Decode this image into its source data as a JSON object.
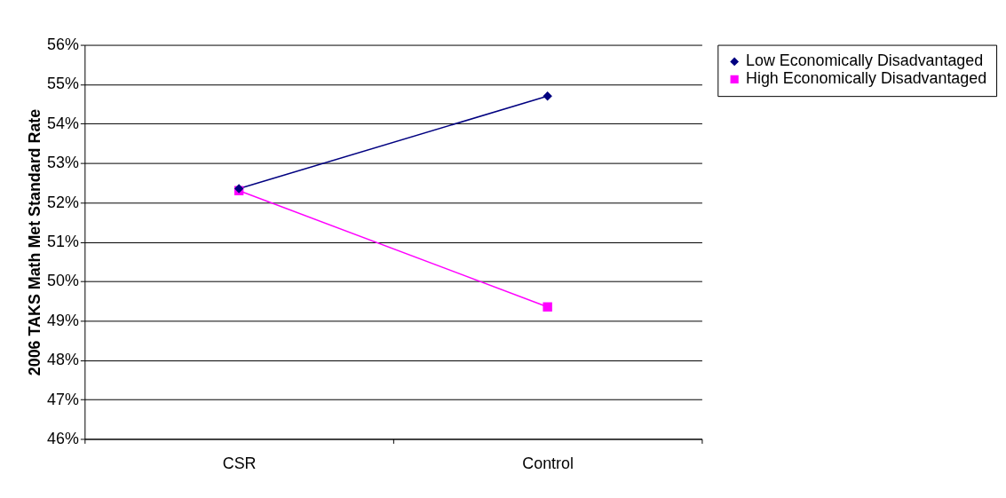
{
  "chart_data": {
    "type": "line",
    "ylabel": "2006 TAKS Math Met Standard Rate",
    "categories": [
      "CSR",
      "Control"
    ],
    "series": [
      {
        "name": "Low Economically Disadvantaged",
        "color": "#000080",
        "marker": "diamond",
        "values": [
          52.35,
          54.7
        ]
      },
      {
        "name": "High Economically Disadvantaged",
        "color": "#ff00ff",
        "marker": "square",
        "values": [
          52.3,
          49.35
        ]
      }
    ],
    "ylim": [
      46,
      56
    ],
    "yticks": [
      {
        "value": 46,
        "label": "46%"
      },
      {
        "value": 47,
        "label": "47%"
      },
      {
        "value": 48,
        "label": "48%"
      },
      {
        "value": 49,
        "label": "49%"
      },
      {
        "value": 50,
        "label": "50%"
      },
      {
        "value": 51,
        "label": "51%"
      },
      {
        "value": 52,
        "label": "52%"
      },
      {
        "value": 53,
        "label": "53%"
      },
      {
        "value": 54,
        "label": "54%"
      },
      {
        "value": 55,
        "label": "55%"
      },
      {
        "value": 56,
        "label": "56%"
      }
    ],
    "grid": "y",
    "legend": "right",
    "line_style": "solid"
  }
}
